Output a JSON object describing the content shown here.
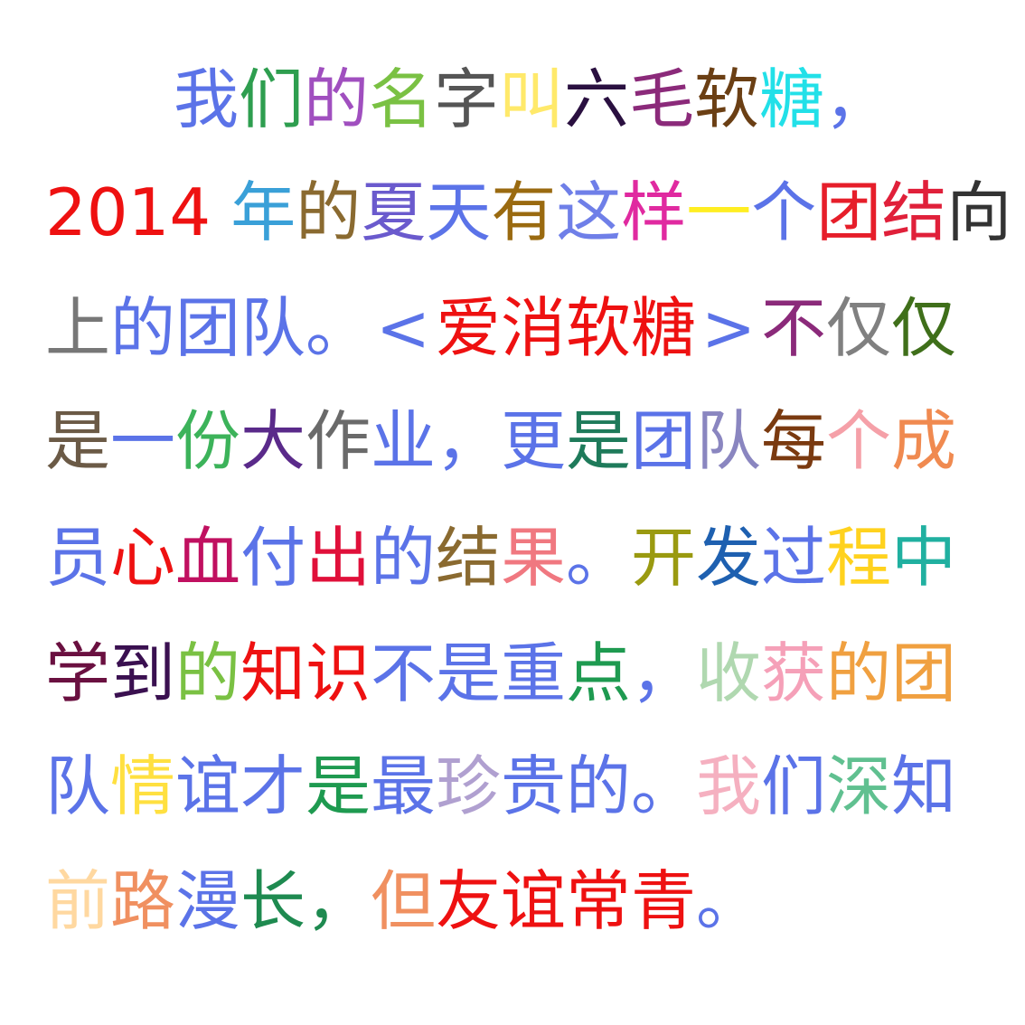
{
  "lines": [
    {
      "left": 192,
      "top": 65,
      "chars": [
        {
          "t": "我",
          "c": "#5b73e8"
        },
        {
          "t": "们",
          "c": "#2e9e4f"
        },
        {
          "t": "的",
          "c": "#a04fbf"
        },
        {
          "t": "名",
          "c": "#7ac143"
        },
        {
          "t": "字",
          "c": "#555555"
        },
        {
          "t": "叫",
          "c": "#ffe96a"
        },
        {
          "t": "六",
          "c": "#2a1040"
        },
        {
          "t": "毛",
          "c": "#8b2a7a"
        },
        {
          "t": "软",
          "c": "#6b3f14"
        },
        {
          "t": "糖",
          "c": "#22e0e8"
        },
        {
          "t": "，",
          "c": "#5b73e8"
        }
      ]
    },
    {
      "left": 50,
      "top": 190,
      "chars": [
        {
          "t": "2014",
          "c": "#ee1111",
          "num": true
        },
        {
          "t": " ",
          "c": "#ffffff",
          "sp": true
        },
        {
          "t": "年",
          "c": "#3aa0d8"
        },
        {
          "t": "的",
          "c": "#8a6a30"
        },
        {
          "t": "夏",
          "c": "#6a5acd"
        },
        {
          "t": "天",
          "c": "#5b73e8"
        },
        {
          "t": "有",
          "c": "#9a6a10"
        },
        {
          "t": "这",
          "c": "#6f7fe8"
        },
        {
          "t": "样",
          "c": "#e02aa0"
        },
        {
          "t": "一",
          "c": "#ffee22"
        },
        {
          "t": "个",
          "c": "#5b73e8"
        },
        {
          "t": "团",
          "c": "#e61e2a"
        },
        {
          "t": "结",
          "c": "#e0203a"
        },
        {
          "t": "向",
          "c": "#333333"
        }
      ]
    },
    {
      "left": 50,
      "top": 318,
      "chars": [
        {
          "t": "上",
          "c": "#777777"
        },
        {
          "t": "的",
          "c": "#5b73e8"
        },
        {
          "t": "团",
          "c": "#5b73e8"
        },
        {
          "t": "队",
          "c": "#5b73e8"
        },
        {
          "t": "。",
          "c": "#5b73e8"
        },
        {
          "t": "<",
          "c": "#5b73e8"
        },
        {
          "t": "爱",
          "c": "#ee1111"
        },
        {
          "t": "消",
          "c": "#ee1111"
        },
        {
          "t": "软",
          "c": "#ee1111"
        },
        {
          "t": "糖",
          "c": "#ee1111"
        },
        {
          "t": ">",
          "c": "#5b73e8"
        },
        {
          "t": "不",
          "c": "#8b2a7a"
        },
        {
          "t": "仅",
          "c": "#808080"
        },
        {
          "t": "仅",
          "c": "#3f6f1a"
        }
      ]
    },
    {
      "left": 50,
      "top": 443,
      "chars": [
        {
          "t": "是",
          "c": "#6b5a46"
        },
        {
          "t": "一",
          "c": "#5b73e8"
        },
        {
          "t": "份",
          "c": "#3cb35a"
        },
        {
          "t": "大",
          "c": "#5a2a8a"
        },
        {
          "t": "作",
          "c": "#6a6a6a"
        },
        {
          "t": "业",
          "c": "#5b73e8"
        },
        {
          "t": "，",
          "c": "#5b73e8"
        },
        {
          "t": "更",
          "c": "#5b73e8"
        },
        {
          "t": "是",
          "c": "#1e7a5a"
        },
        {
          "t": "团",
          "c": "#5b73e8"
        },
        {
          "t": "队",
          "c": "#8a86c0"
        },
        {
          "t": "每",
          "c": "#7a3a10"
        },
        {
          "t": "个",
          "c": "#f5a0a8"
        },
        {
          "t": "成",
          "c": "#f08a50"
        }
      ]
    },
    {
      "left": 50,
      "top": 572,
      "chars": [
        {
          "t": "员",
          "c": "#5b73e8"
        },
        {
          "t": "心",
          "c": "#ee1111"
        },
        {
          "t": "血",
          "c": "#c01060"
        },
        {
          "t": "付",
          "c": "#5b73e8"
        },
        {
          "t": "出",
          "c": "#e0103a"
        },
        {
          "t": "的",
          "c": "#5b73e8"
        },
        {
          "t": "结",
          "c": "#8a6a30"
        },
        {
          "t": "果",
          "c": "#f07880"
        },
        {
          "t": "。",
          "c": "#5b73e8"
        },
        {
          "t": "开",
          "c": "#9a9a10"
        },
        {
          "t": "发",
          "c": "#1e60b0"
        },
        {
          "t": "过",
          "c": "#5b73e8"
        },
        {
          "t": "程",
          "c": "#ffd21e"
        },
        {
          "t": "中",
          "c": "#20b0a0"
        }
      ]
    },
    {
      "left": 50,
      "top": 700,
      "chars": [
        {
          "t": "学",
          "c": "#6a1040"
        },
        {
          "t": "到",
          "c": "#3a1050"
        },
        {
          "t": "的",
          "c": "#7ac143"
        },
        {
          "t": "知",
          "c": "#ee1111"
        },
        {
          "t": "识",
          "c": "#ee1111"
        },
        {
          "t": "不",
          "c": "#5b73e8"
        },
        {
          "t": "是",
          "c": "#5b73e8"
        },
        {
          "t": "重",
          "c": "#5b73e8"
        },
        {
          "t": "点",
          "c": "#1e9a50"
        },
        {
          "t": "，",
          "c": "#5b73e8"
        },
        {
          "t": "收",
          "c": "#b0d8b0"
        },
        {
          "t": "获",
          "c": "#f5a0b8"
        },
        {
          "t": "的",
          "c": "#f0a040"
        },
        {
          "t": "团",
          "c": "#f0a040"
        }
      ]
    },
    {
      "left": 50,
      "top": 825,
      "chars": [
        {
          "t": "队",
          "c": "#5b73e8"
        },
        {
          "t": "情",
          "c": "#ffe040"
        },
        {
          "t": "谊",
          "c": "#5b73e8"
        },
        {
          "t": "才",
          "c": "#5b73e8"
        },
        {
          "t": "是",
          "c": "#1e9a50"
        },
        {
          "t": "最",
          "c": "#5b73e8"
        },
        {
          "t": "珍",
          "c": "#b0a0d0"
        },
        {
          "t": "贵",
          "c": "#5b73e8"
        },
        {
          "t": "的",
          "c": "#5b73e8"
        },
        {
          "t": "。",
          "c": "#5b73e8"
        },
        {
          "t": "我",
          "c": "#f5b0c0"
        },
        {
          "t": "们",
          "c": "#5b73e8"
        },
        {
          "t": "深",
          "c": "#60c090"
        },
        {
          "t": "知",
          "c": "#5b73e8"
        }
      ]
    },
    {
      "left": 50,
      "top": 952,
      "chars": [
        {
          "t": "前",
          "c": "#ffd8a0"
        },
        {
          "t": "路",
          "c": "#f09060"
        },
        {
          "t": "漫",
          "c": "#5b73e8"
        },
        {
          "t": "长",
          "c": "#1e8a50"
        },
        {
          "t": "，",
          "c": "#1e8a50"
        },
        {
          "t": "但",
          "c": "#f09060"
        },
        {
          "t": "友",
          "c": "#ee1111"
        },
        {
          "t": "谊",
          "c": "#ee1111"
        },
        {
          "t": "常",
          "c": "#ee1111"
        },
        {
          "t": "青",
          "c": "#ee1111"
        },
        {
          "t": "。",
          "c": "#5b73e8"
        }
      ]
    }
  ]
}
